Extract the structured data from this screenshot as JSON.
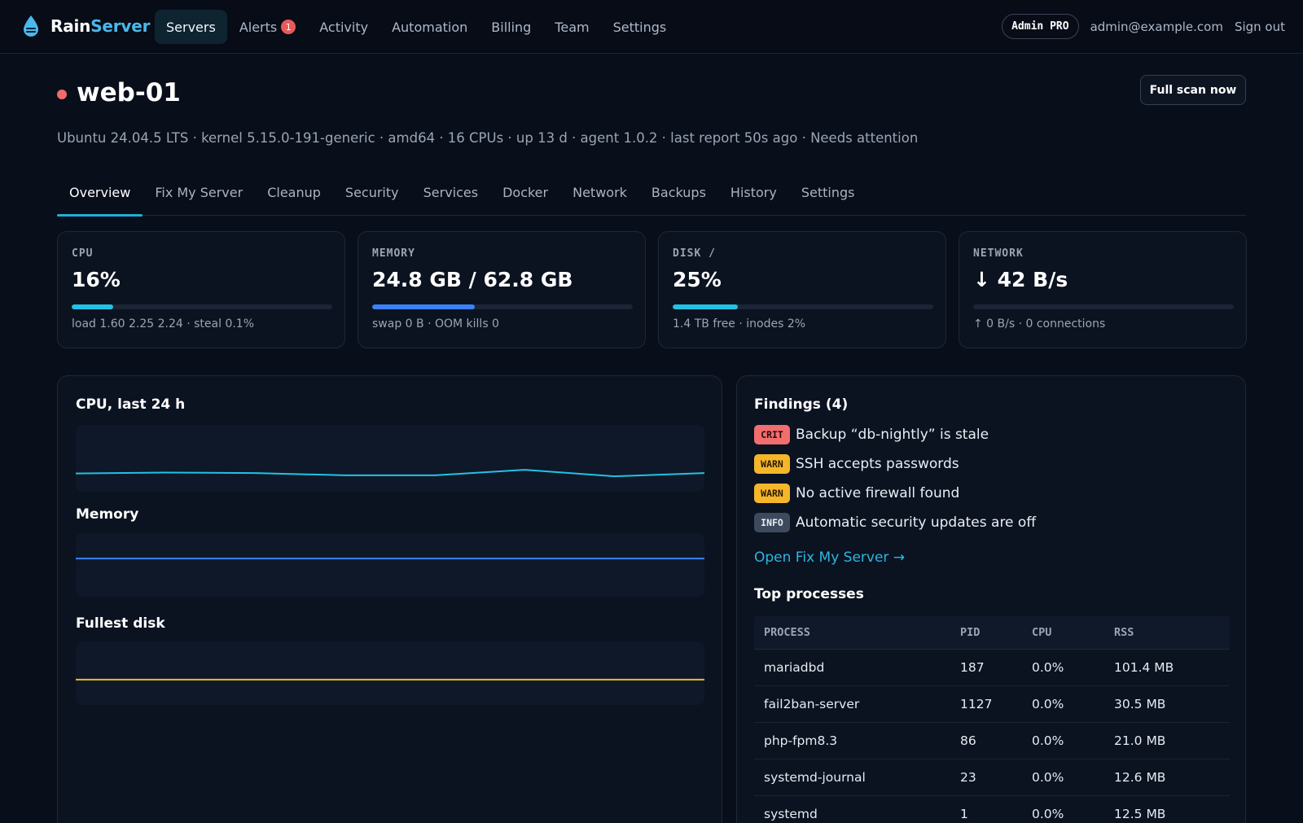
{
  "brand": {
    "name_a": "Rain",
    "name_b": "Server"
  },
  "nav": {
    "items": [
      {
        "label": "Servers",
        "active": true
      },
      {
        "label": "Alerts",
        "badge": "1"
      },
      {
        "label": "Activity"
      },
      {
        "label": "Automation"
      },
      {
        "label": "Billing"
      },
      {
        "label": "Team"
      },
      {
        "label": "Settings"
      }
    ],
    "admin_pill": "Admin PRO",
    "email": "admin@example.com",
    "sign_out": "Sign out"
  },
  "server": {
    "name": "web-01",
    "status_color": "#f26a6a",
    "meta": "Ubuntu 24.04.5 LTS · kernel 5.15.0-191-generic · amd64 · 16 CPUs · up 13 d · agent 1.0.2 · last report 50s ago · Needs attention",
    "scan_button": "Full scan now"
  },
  "tabs": [
    {
      "label": "Overview",
      "active": true
    },
    {
      "label": "Fix My Server"
    },
    {
      "label": "Cleanup"
    },
    {
      "label": "Security"
    },
    {
      "label": "Services"
    },
    {
      "label": "Docker"
    },
    {
      "label": "Network"
    },
    {
      "label": "Backups"
    },
    {
      "label": "History"
    },
    {
      "label": "Settings"
    }
  ],
  "cards": [
    {
      "label": "CPU",
      "value": "16%",
      "fill": 0.16,
      "color": "#22c2e6",
      "sub": "load 1.60 2.25 2.24 · steal 0.1%"
    },
    {
      "label": "MEMORY",
      "value": "24.8 GB / 62.8 GB",
      "fill": 0.395,
      "color": "#3b82f6",
      "sub": "swap 0 B · OOM kills 0"
    },
    {
      "label": "DISK /",
      "value": "25%",
      "fill": 0.25,
      "color": "#22c2e6",
      "sub": "1.4 TB free · inodes 2%"
    },
    {
      "label": "NETWORK",
      "value": "↓ 42 B/s",
      "fill": 0,
      "color": "#22c2e6",
      "sub": "↑ 0 B/s · 0 connections"
    }
  ],
  "charts": {
    "cpu": {
      "title": "CPU, last 24 h",
      "color": "#22c2e6",
      "values": [
        0.16,
        0.17,
        0.165,
        0.14,
        0.14,
        0.2,
        0.13,
        0.165
      ]
    },
    "memory": {
      "title": "Memory",
      "color": "#3b82f6",
      "values": [
        0.395,
        0.395,
        0.395,
        0.395,
        0.395,
        0.395,
        0.395,
        0.395
      ]
    },
    "disk": {
      "title": "Fullest disk",
      "color": "#f6b62a",
      "values": [
        0.25,
        0.25,
        0.25,
        0.25,
        0.25,
        0.25,
        0.25,
        0.25
      ]
    }
  },
  "findings": {
    "title": "Findings (4)",
    "items": [
      {
        "severity": "CRIT",
        "level": "crit",
        "text": "Backup “db-nightly” is stale"
      },
      {
        "severity": "WARN",
        "level": "warn",
        "text": "SSH accepts passwords"
      },
      {
        "severity": "WARN",
        "level": "warn",
        "text": "No active firewall found"
      },
      {
        "severity": "INFO",
        "level": "info",
        "text": "Automatic security updates are off"
      }
    ],
    "link": "Open Fix My Server →"
  },
  "processes": {
    "title": "Top processes",
    "columns": [
      "PROCESS",
      "PID",
      "CPU",
      "RSS"
    ],
    "rows": [
      [
        "mariadbd",
        "187",
        "0.0%",
        "101.4 MB"
      ],
      [
        "fail2ban-server",
        "1127",
        "0.0%",
        "30.5 MB"
      ],
      [
        "php-fpm8.3",
        "86",
        "0.0%",
        "21.0 MB"
      ],
      [
        "systemd-journal",
        "23",
        "0.0%",
        "12.6 MB"
      ],
      [
        "systemd",
        "1",
        "0.0%",
        "12.5 MB"
      ]
    ]
  }
}
